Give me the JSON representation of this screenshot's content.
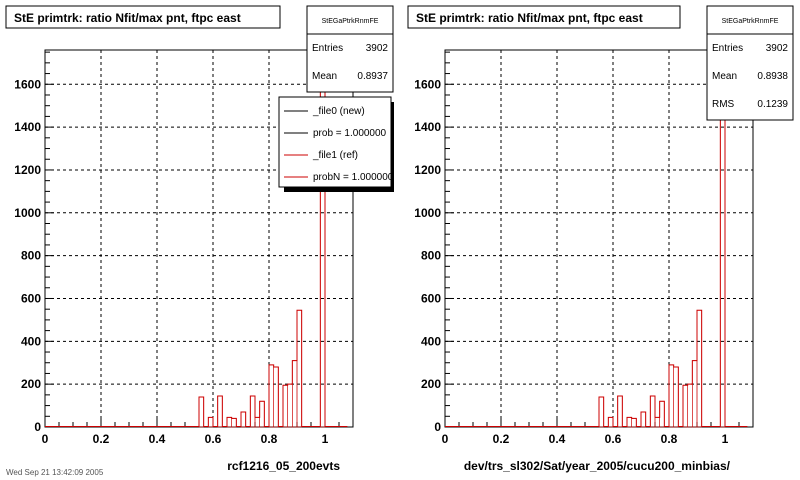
{
  "footer": "Wed Sep 21 13:42:09 2005",
  "colors": {
    "new": "#000000",
    "ref": "#cc0000",
    "frame": "#000000",
    "grid": "#000000"
  },
  "panels": [
    {
      "id": "left",
      "title": "StE primtrk: ratio Nfit/max pnt, ftpc east",
      "xlabel": "rcf1216_05_200evts",
      "stats": {
        "name": "StEGaPtrkRnmFE",
        "rows": [
          {
            "label": "Entries",
            "value": "3902"
          },
          {
            "label": "Mean",
            "value": "0.8937"
          }
        ]
      },
      "legend": [
        {
          "label": "_file0 (new)",
          "color": "#000000"
        },
        {
          "label": "prob = 1.000000",
          "color": "#000000"
        },
        {
          "label": "_file1 (ref)",
          "color": "#cc0000"
        },
        {
          "label": "probN = 1.000000",
          "color": "#cc0000"
        }
      ]
    },
    {
      "id": "right",
      "title": "StE primtrk: ratio Nfit/max pnt, ftpc east",
      "xlabel": "dev/trs_sl302/Sat/year_2005/cucu200_minbias/",
      "stats": {
        "name": "StEGaPtrkRnmFE",
        "rows": [
          {
            "label": "Entries",
            "value": "3902"
          },
          {
            "label": "Mean",
            "value": "0.8938"
          },
          {
            "label": "RMS",
            "value": "0.1239"
          }
        ]
      },
      "legend": []
    }
  ],
  "chart_data": {
    "type": "bar",
    "histogram": true,
    "xlim": [
      0,
      1.1
    ],
    "ylim": [
      0,
      1760
    ],
    "xticks": [
      "0",
      "0.2",
      "0.4",
      "0.6",
      "0.8",
      "1"
    ],
    "yticks": [
      "0",
      "200",
      "400",
      "600",
      "800",
      "1000",
      "1200",
      "1400",
      "1600"
    ],
    "xtick_values": [
      0,
      0.2,
      0.4,
      0.6,
      0.8,
      1.0
    ],
    "ytick_values": [
      0,
      200,
      400,
      600,
      800,
      1000,
      1200,
      1400,
      1600
    ],
    "grid": true,
    "legend": "top-right",
    "series": [
      {
        "name": "_file1 (ref)",
        "color": "#cc0000",
        "bins": [
          [
            0.55,
            0.5667,
            140
          ],
          [
            0.5667,
            0.5833,
            0
          ],
          [
            0.5833,
            0.6,
            45
          ],
          [
            0.6,
            0.6167,
            0
          ],
          [
            0.6167,
            0.6333,
            145
          ],
          [
            0.6333,
            0.65,
            0
          ],
          [
            0.65,
            0.6667,
            45
          ],
          [
            0.6667,
            0.6833,
            40
          ],
          [
            0.6833,
            0.7,
            0
          ],
          [
            0.7,
            0.7167,
            70
          ],
          [
            0.7167,
            0.7333,
            0
          ],
          [
            0.7333,
            0.75,
            145
          ],
          [
            0.75,
            0.7667,
            45
          ],
          [
            0.7667,
            0.7833,
            120
          ],
          [
            0.7833,
            0.8,
            0
          ],
          [
            0.8,
            0.8167,
            290
          ],
          [
            0.8167,
            0.8333,
            280
          ],
          [
            0.8333,
            0.85,
            0
          ],
          [
            0.85,
            0.8667,
            195
          ],
          [
            0.8667,
            0.8833,
            200
          ],
          [
            0.8833,
            0.9,
            310
          ],
          [
            0.9,
            0.9167,
            545
          ],
          [
            0.9167,
            0.9333,
            0
          ],
          [
            0.9333,
            0.95,
            0
          ],
          [
            0.95,
            0.9667,
            0
          ],
          [
            0.9667,
            0.9833,
            0
          ],
          [
            0.9833,
            1.0,
            1680
          ],
          [
            1.0,
            1.0167,
            0
          ]
        ]
      }
    ]
  }
}
